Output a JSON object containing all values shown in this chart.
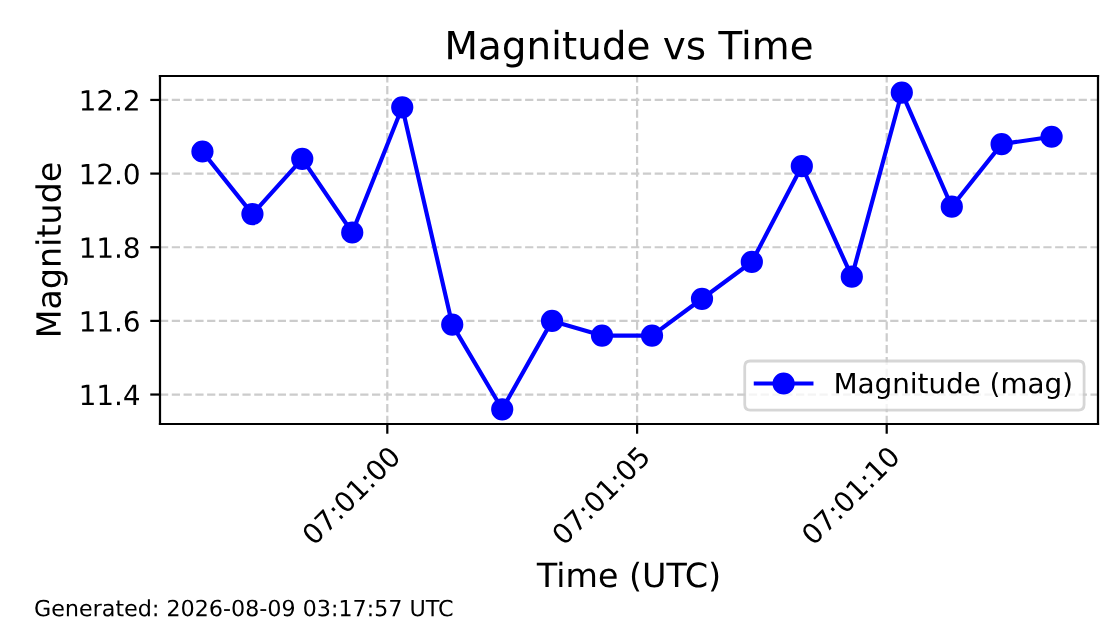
{
  "chart_data": {
    "type": "line",
    "title": "Magnitude vs Time",
    "xlabel": "Time (UTC)",
    "ylabel": "Magnitude",
    "x": [
      7.015639,
      7.015917,
      7.016194,
      7.016472,
      7.01675,
      7.017028,
      7.017306,
      7.017583,
      7.017861,
      7.018139,
      7.018417,
      7.018694,
      7.018972,
      7.01925,
      7.019528,
      7.019806,
      7.020083,
      7.020361
    ],
    "series": [
      {
        "name": "Magnitude (mag)",
        "color": "#0000ff",
        "values": [
          12.06,
          11.89,
          12.04,
          11.84,
          12.18,
          11.59,
          11.36,
          11.6,
          11.56,
          11.56,
          11.66,
          11.76,
          12.02,
          11.72,
          12.22,
          11.91,
          12.08,
          12.1
        ]
      }
    ],
    "xlim": [
      7.015403,
      7.020619
    ],
    "xticks": [
      {
        "value": 7.016667,
        "label": "07:01:00"
      },
      {
        "value": 7.018056,
        "label": "07:01:05"
      },
      {
        "value": 7.019444,
        "label": "07:01:10"
      }
    ],
    "ylim": [
      11.32,
      12.265
    ],
    "yticks": [
      {
        "value": 11.4,
        "label": "11.4"
      },
      {
        "value": 11.6,
        "label": "11.6"
      },
      {
        "value": 11.8,
        "label": "11.8"
      },
      {
        "value": 12.0,
        "label": "12.0"
      },
      {
        "value": 12.2,
        "label": "12.2"
      }
    ],
    "grid": true,
    "legend": "lower right",
    "marker": "circle",
    "line_style": "solid",
    "annotations": [
      "Generated: 2026-08-09 03:17:57 UTC"
    ]
  }
}
